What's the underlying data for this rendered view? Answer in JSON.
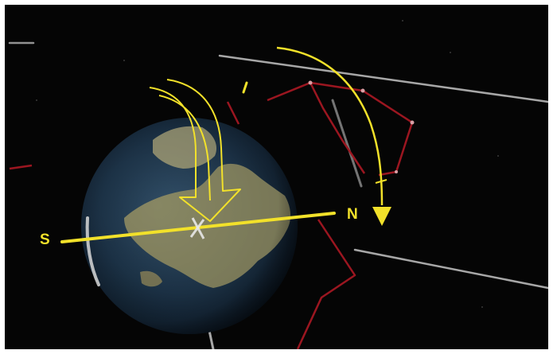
{
  "scene": {
    "labels": {
      "south": "S",
      "north": "N"
    },
    "colors": {
      "background": "#050505",
      "axis": "#f2e12a",
      "arrow": "#f2e12a",
      "orbit_track": "#cfcfcf",
      "constellation": "#9b1620",
      "ocean": "#1d3449",
      "land": "#8c8a63"
    },
    "icons": {
      "earth": "earth-globe-icon",
      "rotation_arrow": "curved-arrow-down-icon",
      "orbit_arrow": "curved-arrow-down-icon"
    }
  }
}
